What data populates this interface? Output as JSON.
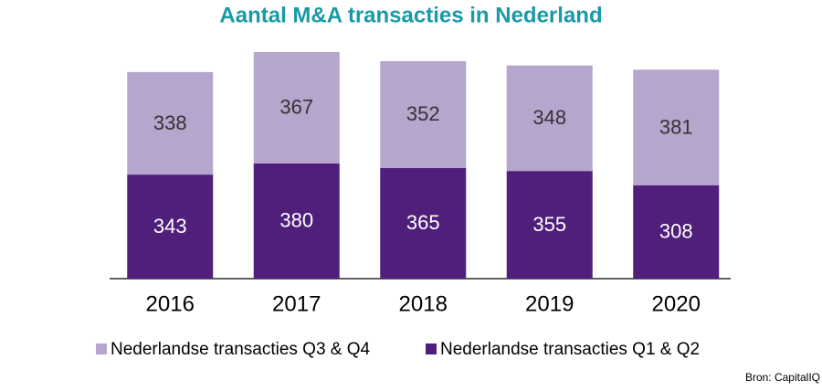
{
  "chart_data": {
    "type": "stacked-bar",
    "title": "Aantal M&A transacties in Nederland",
    "categories": [
      "2016",
      "2017",
      "2018",
      "2019",
      "2020"
    ],
    "series": [
      {
        "name": "Nederlandse transacties Q3 & Q4",
        "color": "#b6a5cd",
        "values": [
          338,
          367,
          352,
          348,
          381
        ]
      },
      {
        "name": "Nederlandse transacties Q1 & Q2",
        "color": "#501e7b",
        "values": [
          343,
          380,
          365,
          355,
          308
        ]
      }
    ],
    "source": "Bron: CapitalIQ"
  }
}
